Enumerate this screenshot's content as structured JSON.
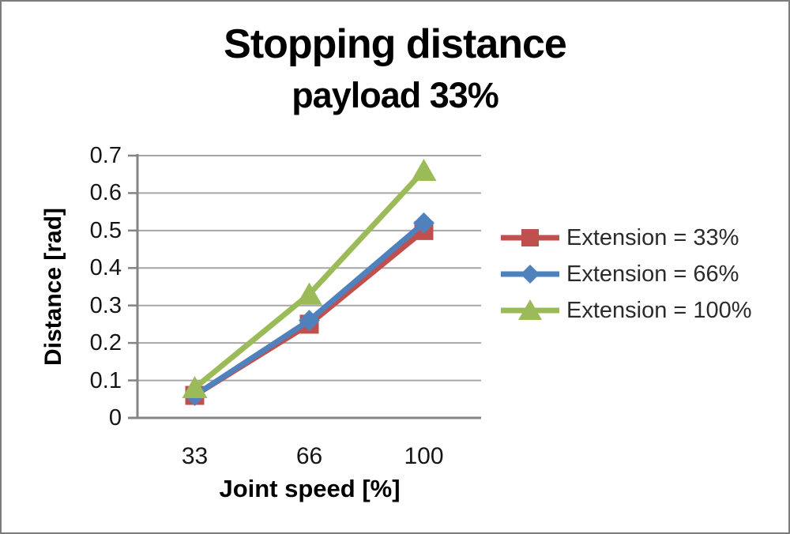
{
  "title": "Stopping distance",
  "subtitle": "payload 33%",
  "colors": {
    "background": "#ffffff",
    "frame_border": "#7c7c7c",
    "gridline": "#a6a6a6",
    "axis": "#848484",
    "text": "#000000",
    "tick_text": "#151515",
    "legend_text": "#2b2b2b",
    "series_red": "#c0504d",
    "series_blue": "#4f81bd",
    "series_green": "#9bbb59"
  },
  "chart_data": {
    "type": "line",
    "title": "Stopping distance",
    "subtitle": "payload 33%",
    "xlabel": "Joint speed [%]",
    "ylabel": "Distance [rad]",
    "categories": [
      "33",
      "66",
      "100"
    ],
    "y_ticks": [
      "0.7",
      "0.6",
      "0.5",
      "0.4",
      "0.3",
      "0.2",
      "0.1",
      "0"
    ],
    "ylim": [
      0,
      0.7
    ],
    "y_step": 0.1,
    "grid": "horizontal",
    "legend_position": "right",
    "series": [
      {
        "name": "Extension = 33%",
        "color": "#c0504d",
        "marker": "square",
        "values": [
          0.06,
          0.25,
          0.5
        ]
      },
      {
        "name": "Extension = 66%",
        "color": "#4f81bd",
        "marker": "diamond",
        "values": [
          0.06,
          0.26,
          0.52
        ]
      },
      {
        "name": "Extension = 100%",
        "color": "#9bbb59",
        "marker": "triangle",
        "values": [
          0.08,
          0.33,
          0.66
        ]
      }
    ]
  }
}
